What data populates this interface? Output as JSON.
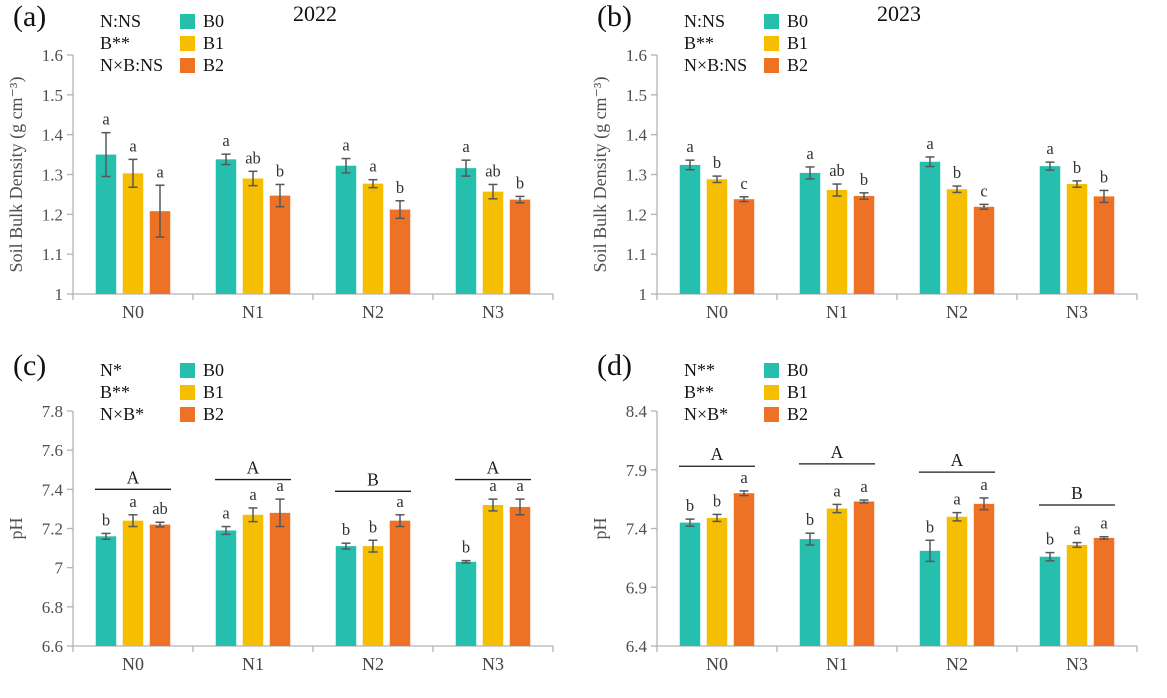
{
  "figure": {
    "background": "#ffffff",
    "axis_color": "#b3b3b3",
    "error_bar_color": "#54585c",
    "tick_label_color": "#4f4f4f",
    "category_label_color": "#434343",
    "letter_color": "#333333",
    "group_line_color": "#1a1a1a"
  },
  "chart_data": [
    {
      "type": "bar",
      "panel_label": "(a)",
      "title": "2022",
      "anova": [
        "N:NS",
        "B**",
        "N×B:NS"
      ],
      "ylabel": "Soil Bulk Density (g cm⁻³)",
      "ylim": [
        1.0,
        1.6
      ],
      "yticks": [
        1.0,
        1.1,
        1.2,
        1.3,
        1.4,
        1.5,
        1.6
      ],
      "ytick_labels": [
        "1",
        "1.1",
        "1.2",
        "1.3",
        "1.4",
        "1.5",
        "1.6"
      ],
      "categories": [
        "N0",
        "N1",
        "N2",
        "N3"
      ],
      "series": [
        {
          "name": "B0",
          "color": "#26BFAD",
          "values": [
            1.35,
            1.338,
            1.322,
            1.316
          ],
          "errors": [
            0.055,
            0.013,
            0.018,
            0.02
          ],
          "letters": [
            "a",
            "a",
            "a",
            "a"
          ]
        },
        {
          "name": "B1",
          "color": "#F6BE00",
          "values": [
            1.303,
            1.29,
            1.277,
            1.257
          ],
          "errors": [
            0.035,
            0.018,
            0.01,
            0.018
          ],
          "letters": [
            "a",
            "ab",
            "a",
            "ab"
          ]
        },
        {
          "name": "B2",
          "color": "#ED7226",
          "values": [
            1.208,
            1.247,
            1.212,
            1.237
          ],
          "errors": [
            0.065,
            0.028,
            0.022,
            0.008
          ],
          "letters": [
            "a",
            "b",
            "b",
            "b"
          ]
        }
      ]
    },
    {
      "type": "bar",
      "panel_label": "(b)",
      "title": "2023",
      "anova": [
        "N:NS",
        "B**",
        "N×B:NS"
      ],
      "ylabel": "Soil Bulk Density (g cm⁻³)",
      "ylim": [
        1.0,
        1.6
      ],
      "yticks": [
        1.0,
        1.1,
        1.2,
        1.3,
        1.4,
        1.5,
        1.6
      ],
      "ytick_labels": [
        "1",
        "1.1",
        "1.2",
        "1.3",
        "1.4",
        "1.5",
        "1.6"
      ],
      "categories": [
        "N0",
        "N1",
        "N2",
        "N3"
      ],
      "series": [
        {
          "name": "B0",
          "color": "#26BFAD",
          "values": [
            1.324,
            1.304,
            1.332,
            1.321
          ],
          "errors": [
            0.012,
            0.015,
            0.012,
            0.01
          ],
          "letters": [
            "a",
            "a",
            "a",
            "a"
          ]
        },
        {
          "name": "B1",
          "color": "#F6BE00",
          "values": [
            1.288,
            1.261,
            1.263,
            1.276
          ],
          "errors": [
            0.008,
            0.015,
            0.008,
            0.008
          ],
          "letters": [
            "b",
            "ab",
            "b",
            "b"
          ]
        },
        {
          "name": "B2",
          "color": "#ED7226",
          "values": [
            1.238,
            1.246,
            1.219,
            1.245
          ],
          "errors": [
            0.006,
            0.008,
            0.006,
            0.015
          ],
          "letters": [
            "c",
            "b",
            "c",
            "b"
          ]
        }
      ]
    },
    {
      "type": "bar",
      "panel_label": "(c)",
      "title": "",
      "anova": [
        "N*",
        "B**",
        "N×B*"
      ],
      "ylabel": "pH",
      "ylim": [
        6.6,
        7.8
      ],
      "yticks": [
        6.6,
        6.8,
        7.0,
        7.2,
        7.4,
        7.6,
        7.8
      ],
      "ytick_labels": [
        "6.6",
        "6.8",
        "7",
        "7.2",
        "7.4",
        "7.6",
        "7.8"
      ],
      "categories": [
        "N0",
        "N1",
        "N2",
        "N3"
      ],
      "series": [
        {
          "name": "B0",
          "color": "#26BFAD",
          "values": [
            7.16,
            7.19,
            7.11,
            7.03
          ],
          "errors": [
            0.015,
            0.02,
            0.015,
            0.006
          ],
          "letters": [
            "b",
            "a",
            "b",
            "b"
          ]
        },
        {
          "name": "B1",
          "color": "#F6BE00",
          "values": [
            7.24,
            7.27,
            7.11,
            7.32
          ],
          "errors": [
            0.03,
            0.035,
            0.03,
            0.03
          ],
          "letters": [
            "a",
            "a",
            "b",
            "a"
          ]
        },
        {
          "name": "B2",
          "color": "#ED7226",
          "values": [
            7.22,
            7.28,
            7.24,
            7.31
          ],
          "errors": [
            0.012,
            0.07,
            0.03,
            0.04
          ],
          "letters": [
            "ab",
            "a",
            "a",
            "a"
          ]
        }
      ],
      "group_letters": [
        {
          "letter": "A",
          "line_y": 7.4
        },
        {
          "letter": "A",
          "line_y": 7.45
        },
        {
          "letter": "B",
          "line_y": 7.39
        },
        {
          "letter": "A",
          "line_y": 7.45
        }
      ]
    },
    {
      "type": "bar",
      "panel_label": "(d)",
      "title": "",
      "anova": [
        "N**",
        "B**",
        "N×B*"
      ],
      "ylabel": "pH",
      "ylim": [
        6.4,
        8.4
      ],
      "yticks": [
        6.4,
        6.9,
        7.4,
        7.9,
        8.4
      ],
      "ytick_labels": [
        "6.4",
        "6.9",
        "7.4",
        "7.9",
        "8.4"
      ],
      "categories": [
        "N0",
        "N1",
        "N2",
        "N3"
      ],
      "series": [
        {
          "name": "B0",
          "color": "#26BFAD",
          "values": [
            7.45,
            7.31,
            7.21,
            7.16
          ],
          "errors": [
            0.03,
            0.05,
            0.09,
            0.035
          ],
          "letters": [
            "b",
            "b",
            "b",
            "b"
          ]
        },
        {
          "name": "B1",
          "color": "#F6BE00",
          "values": [
            7.49,
            7.57,
            7.5,
            7.26
          ],
          "errors": [
            0.03,
            0.035,
            0.035,
            0.02
          ],
          "letters": [
            "b",
            "a",
            "a",
            "a"
          ]
        },
        {
          "name": "B2",
          "color": "#ED7226",
          "values": [
            7.7,
            7.63,
            7.61,
            7.32
          ],
          "errors": [
            0.02,
            0.012,
            0.05,
            0.01
          ],
          "letters": [
            "a",
            "a",
            "a",
            "a"
          ]
        }
      ],
      "group_letters": [
        {
          "letter": "A",
          "line_y": 7.93
        },
        {
          "letter": "A",
          "line_y": 7.95
        },
        {
          "letter": "A",
          "line_y": 7.88
        },
        {
          "letter": "B",
          "line_y": 7.6
        }
      ]
    }
  ]
}
